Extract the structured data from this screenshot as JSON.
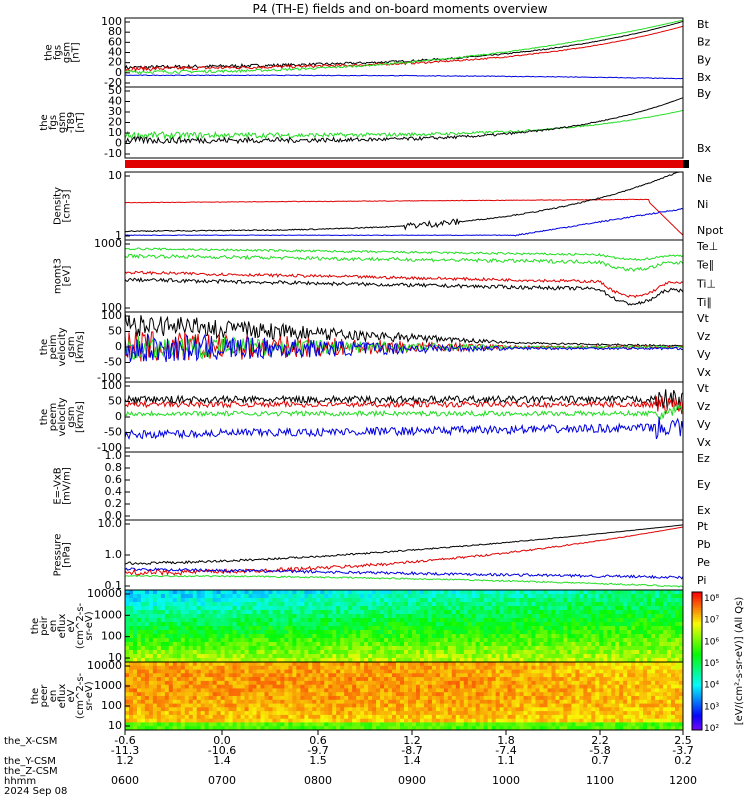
{
  "title": "P4 (TH-E) fields and on-board moments overview",
  "colors": {
    "black": "#000000",
    "red": "#e00000",
    "green": "#22dd22",
    "blue": "#0000e0"
  },
  "chart_data": [
    {
      "type": "line",
      "ylabel": [
        "the",
        "fgs",
        "gsm",
        "[nT]"
      ],
      "yticks": [
        "100",
        "80",
        "60",
        "40",
        "20",
        "0",
        "-20"
      ],
      "ylim": [
        -20,
        100
      ],
      "series": [
        {
          "name": "Bt",
          "color": "black"
        },
        {
          "name": "Bz",
          "color": "red"
        },
        {
          "name": "By",
          "color": "green"
        },
        {
          "name": "Bx",
          "color": "blue"
        }
      ]
    },
    {
      "type": "line",
      "ylabel": [
        "the",
        "fgs",
        "gsm",
        "-T89",
        "[nT]"
      ],
      "yticks": [
        "50",
        "40",
        "30",
        "20",
        "10",
        "0",
        "-10"
      ],
      "ylim": [
        -20,
        50
      ],
      "series": [
        {
          "name": "By",
          "color": "green"
        },
        {
          "name": "Bx",
          "color": "black"
        }
      ]
    },
    {
      "type": "line",
      "ylabel": [
        "Density",
        "[cm-3]"
      ],
      "yticks": [
        "10",
        "1"
      ],
      "log": true,
      "series": [
        {
          "name": "Ne",
          "color": "red"
        },
        {
          "name": "Ni",
          "color": "black"
        },
        {
          "name": "Npot",
          "color": "blue"
        }
      ]
    },
    {
      "type": "line",
      "ylabel": [
        "momt3",
        "[eV]"
      ],
      "yticks": [
        "1000",
        "100"
      ],
      "log": true,
      "series": [
        {
          "name": "Te⊥",
          "color": "red"
        },
        {
          "name": "Te∥",
          "color": "black"
        },
        {
          "name": "Ti⊥",
          "color": "green"
        },
        {
          "name": "Ti∥",
          "color": "green"
        }
      ]
    },
    {
      "type": "line",
      "ylabel": [
        "the",
        "peim",
        "velocity",
        "gsm",
        "[km/s]"
      ],
      "yticks": [
        "100",
        "50",
        "0",
        "-50",
        "-100"
      ],
      "ylim": [
        -120,
        120
      ],
      "series": [
        {
          "name": "Vt",
          "color": "black"
        },
        {
          "name": "Vz",
          "color": "red"
        },
        {
          "name": "Vy",
          "color": "green"
        },
        {
          "name": "Vx",
          "color": "blue"
        }
      ]
    },
    {
      "type": "line",
      "ylabel": [
        "the",
        "peem",
        "velocity",
        "gsm",
        "[km/s]"
      ],
      "yticks": [
        "100",
        "50",
        "0",
        "-50",
        "-100"
      ],
      "ylim": [
        -120,
        120
      ],
      "series": [
        {
          "name": "Vt",
          "color": "black"
        },
        {
          "name": "Vz",
          "color": "red"
        },
        {
          "name": "Vy",
          "color": "green"
        },
        {
          "name": "Vx",
          "color": "blue"
        }
      ]
    },
    {
      "type": "line",
      "ylabel": [
        "E=-VxB",
        "[mV/m]"
      ],
      "yticks": [
        "1.0",
        "0.8",
        "0.6",
        "0.4",
        "0.2",
        "0.0"
      ],
      "ylim": [
        0,
        1
      ],
      "series": [
        {
          "name": "Ez",
          "color": "red"
        },
        {
          "name": "Ey",
          "color": "green"
        },
        {
          "name": "Ex",
          "color": "blue"
        }
      ]
    },
    {
      "type": "line",
      "ylabel": [
        "Pressure",
        "[nPa]"
      ],
      "yticks": [
        "10.0",
        "1.0",
        "0.1"
      ],
      "log": true,
      "series": [
        {
          "name": "Pt",
          "color": "black"
        },
        {
          "name": "Pb",
          "color": "red"
        },
        {
          "name": "Pe",
          "color": "green"
        },
        {
          "name": "Pi",
          "color": "blue"
        }
      ]
    },
    {
      "type": "heatmap",
      "ylabel": [
        "the",
        "peir",
        "en",
        "eflux",
        "eV",
        "(cm^2-s-",
        "sr-eV)"
      ],
      "yticks": [
        "10000",
        "1000",
        "100",
        "10"
      ]
    },
    {
      "type": "heatmap",
      "ylabel": [
        "the",
        "peer",
        "en",
        "eflux",
        "eV",
        "(cm^2-s-",
        "sr-eV)"
      ],
      "yticks": [
        "10000",
        "1000",
        "100",
        "10"
      ]
    }
  ],
  "colorbar": {
    "labels": [
      "10⁸",
      "10⁷",
      "10⁶",
      "10⁵",
      "10⁴",
      "10³",
      "10²"
    ],
    "label": "[eV/(cm²-s-sr-eV)] (All Qs)"
  },
  "xaxis": {
    "rows": [
      {
        "name": "the_X-CSM",
        "values": [
          "-0.6",
          "0.0",
          "0.6",
          "1.2",
          "1.8",
          "2.2",
          "2.5"
        ]
      },
      {
        "name": "",
        "values": [
          "-11.3",
          "-10.6",
          "-9.7",
          "-8.7",
          "-7.4",
          "-5.8",
          "-3.7"
        ]
      },
      {
        "name": "the_Y-CSM",
        "values": [
          "1.2",
          "1.4",
          "1.5",
          "1.4",
          "1.1",
          "0.7",
          "0.2"
        ]
      },
      {
        "name": "the_Z-CSM",
        "values": [
          "",
          "",
          "",
          "",
          "",
          "",
          ""
        ]
      },
      {
        "name": "hhmm",
        "values": [
          "0600",
          "0700",
          "0800",
          "0900",
          "1000",
          "1100",
          "1200"
        ]
      },
      {
        "name": "2024 Sep 08",
        "values": [
          "",
          "",
          "",
          "",
          "",
          "",
          ""
        ]
      }
    ]
  }
}
